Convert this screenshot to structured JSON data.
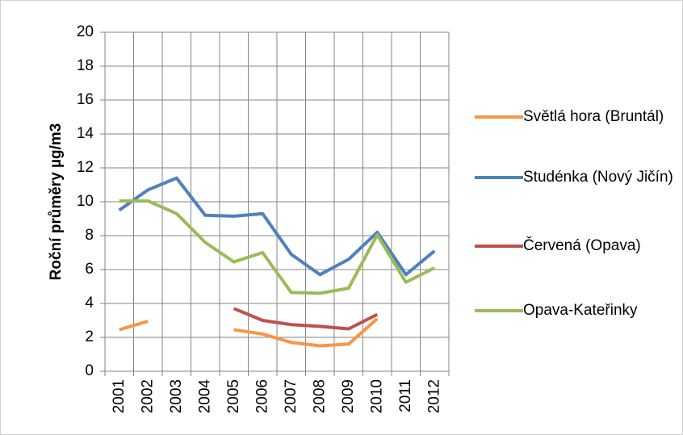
{
  "chart_data": {
    "type": "line",
    "ylabel": "Roční průměry µg/m3",
    "categories": [
      "2001",
      "2002",
      "2003",
      "2004",
      "2005",
      "2006",
      "2007",
      "2008",
      "2009",
      "2010",
      "2011",
      "2012"
    ],
    "series": [
      {
        "name": "Světlá hora (Bruntál)",
        "color": "#f79646",
        "values": [
          2.45,
          2.95,
          null,
          null,
          2.45,
          2.2,
          1.7,
          1.5,
          1.6,
          3.1,
          null,
          null
        ]
      },
      {
        "name": "Studénka (Nový Jičín)",
        "color": "#4f81bd",
        "values": [
          9.5,
          10.7,
          11.4,
          9.2,
          9.15,
          9.3,
          6.9,
          5.7,
          6.6,
          8.2,
          5.7,
          7.1
        ]
      },
      {
        "name": "Červená (Opava)",
        "color": "#c0504d",
        "values": [
          null,
          null,
          null,
          null,
          3.7,
          3.0,
          2.75,
          2.65,
          2.5,
          3.35,
          null,
          null
        ]
      },
      {
        "name": "Opava-Kateřinky",
        "color": "#9bbb59",
        "values": [
          10.05,
          10.05,
          9.3,
          7.6,
          6.45,
          7.0,
          4.65,
          4.6,
          4.9,
          8.05,
          5.25,
          6.1
        ]
      }
    ],
    "ylim": [
      0,
      20
    ],
    "yticks": [
      0,
      2,
      4,
      6,
      8,
      10,
      12,
      14,
      16,
      18,
      20
    ],
    "grid": true
  }
}
